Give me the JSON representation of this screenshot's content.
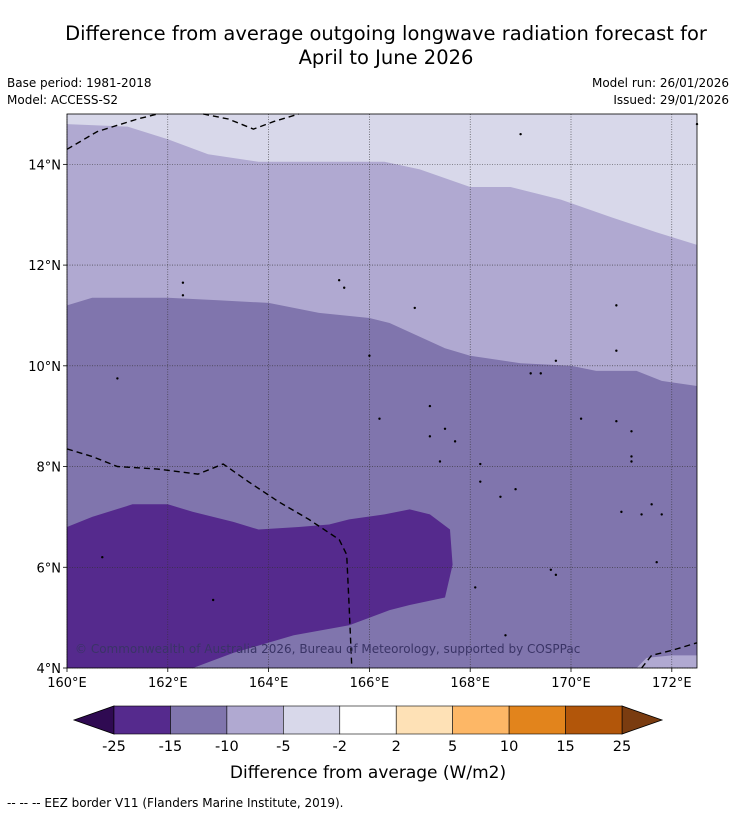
{
  "header": {
    "title_line1": "Difference from average outgoing longwave radiation forecast for",
    "title_line2": "April to June 2026",
    "base_period": "Base period: 1981-2018",
    "model": "Model: ACCESS-S2",
    "model_run": "Model run: 26/01/2026",
    "issued": "Issued: 29/01/2026"
  },
  "map": {
    "lon_range": [
      160,
      172.5
    ],
    "lat_range": [
      4,
      15
    ],
    "x_ticks": [
      {
        "value": 160,
        "label": "160°E"
      },
      {
        "value": 162,
        "label": "162°E"
      },
      {
        "value": 164,
        "label": "164°E"
      },
      {
        "value": 166,
        "label": "166°E"
      },
      {
        "value": 168,
        "label": "168°E"
      },
      {
        "value": 170,
        "label": "170°E"
      },
      {
        "value": 172,
        "label": "172°E"
      }
    ],
    "y_ticks": [
      {
        "value": 4,
        "label": "4°N"
      },
      {
        "value": 6,
        "label": "6°N"
      },
      {
        "value": 8,
        "label": "8°N"
      },
      {
        "value": 10,
        "label": "10°N"
      },
      {
        "value": 12,
        "label": "12°N"
      },
      {
        "value": 14,
        "label": "14°N"
      }
    ],
    "gridlines": true,
    "copyright": "© Commonwealth of Australia 2026, Bureau of Meteorology, supported by COSPPac",
    "regions": [
      {
        "name": "-5 to -2",
        "color": "#d8d8ea",
        "points": [
          [
            160,
            15
          ],
          [
            172.5,
            15
          ],
          [
            172.5,
            4
          ],
          [
            160,
            4
          ]
        ]
      },
      {
        "name": "-10 to -5",
        "color": "#b0a9d1",
        "points": [
          [
            160,
            14.8
          ],
          [
            161.2,
            14.75
          ],
          [
            162,
            14.5
          ],
          [
            162.8,
            14.2
          ],
          [
            163.8,
            14.05
          ],
          [
            165,
            14.05
          ],
          [
            166.3,
            14.05
          ],
          [
            167,
            13.9
          ],
          [
            168,
            13.55
          ],
          [
            168.8,
            13.55
          ],
          [
            169.8,
            13.3
          ],
          [
            170.8,
            12.95
          ],
          [
            171.7,
            12.65
          ],
          [
            172.5,
            12.4
          ],
          [
            172.5,
            4
          ],
          [
            160,
            4
          ]
        ]
      },
      {
        "name": "-15 to -10",
        "color": "#8075ad",
        "points": [
          [
            160,
            11.2
          ],
          [
            160.5,
            11.35
          ],
          [
            162,
            11.35
          ],
          [
            163,
            11.3
          ],
          [
            164,
            11.25
          ],
          [
            165,
            11.05
          ],
          [
            166,
            10.95
          ],
          [
            166.4,
            10.85
          ],
          [
            167.5,
            10.35
          ],
          [
            168,
            10.2
          ],
          [
            169,
            10.05
          ],
          [
            170,
            10
          ],
          [
            170.5,
            9.9
          ],
          [
            171.3,
            9.9
          ],
          [
            171.8,
            9.7
          ],
          [
            172.5,
            9.6
          ],
          [
            172.5,
            4
          ],
          [
            160,
            4
          ]
        ]
      },
      {
        "name": "-25 to -15",
        "color": "#552a8d",
        "points": [
          [
            160,
            6.8
          ],
          [
            160.5,
            7
          ],
          [
            161.3,
            7.25
          ],
          [
            162,
            7.25
          ],
          [
            162.5,
            7.1
          ],
          [
            163.3,
            6.9
          ],
          [
            163.8,
            6.75
          ],
          [
            164.6,
            6.8
          ],
          [
            165.2,
            6.85
          ],
          [
            165.6,
            6.95
          ],
          [
            166.3,
            7.05
          ],
          [
            166.8,
            7.15
          ],
          [
            167.2,
            7.05
          ],
          [
            167.6,
            6.75
          ],
          [
            167.65,
            6.05
          ],
          [
            167.5,
            5.4
          ],
          [
            166.8,
            5.25
          ],
          [
            166.4,
            5.15
          ],
          [
            165.6,
            4.85
          ],
          [
            164.5,
            4.65
          ],
          [
            163.3,
            4.3
          ],
          [
            162.5,
            4
          ],
          [
            160,
            4
          ]
        ]
      },
      {
        "name": "-10 to -5 corner",
        "color": "#b0a9d1",
        "points": [
          [
            171.3,
            4
          ],
          [
            172.5,
            4
          ],
          [
            172.5,
            4.25
          ],
          [
            172,
            4.25
          ],
          [
            171.5,
            4.2
          ]
        ]
      }
    ],
    "eez_borders": [
      [
        [
          160,
          14.3
        ],
        [
          160.6,
          14.65
        ],
        [
          161.4,
          14.9
        ],
        [
          161.8,
          15
        ]
      ],
      [
        [
          162.7,
          15
        ],
        [
          163.2,
          14.9
        ],
        [
          163.7,
          14.7
        ],
        [
          164.1,
          14.85
        ],
        [
          164.6,
          15
        ]
      ],
      [
        [
          160,
          8.35
        ],
        [
          160.5,
          8.2
        ],
        [
          161,
          8
        ],
        [
          161.8,
          7.95
        ],
        [
          162.6,
          7.85
        ],
        [
          163.1,
          8.05
        ],
        [
          163.6,
          7.7
        ],
        [
          164.2,
          7.3
        ],
        [
          164.8,
          6.95
        ],
        [
          165.4,
          6.55
        ],
        [
          165.55,
          6.25
        ],
        [
          165.6,
          5.2
        ],
        [
          165.65,
          4
        ]
      ],
      [
        [
          171.4,
          4
        ],
        [
          171.6,
          4.25
        ],
        [
          172,
          4.35
        ],
        [
          172.5,
          4.5
        ]
      ]
    ],
    "islands": [
      [
        162.3,
        11.65
      ],
      [
        162.3,
        11.4
      ],
      [
        165.4,
        11.7
      ],
      [
        165.5,
        11.55
      ],
      [
        166.9,
        11.15
      ],
      [
        169,
        14.6
      ],
      [
        172.5,
        14.8
      ],
      [
        170.9,
        11.2
      ],
      [
        161,
        9.75
      ],
      [
        166,
        10.2
      ],
      [
        170.9,
        10.3
      ],
      [
        169.7,
        10.1
      ],
      [
        169.2,
        9.85
      ],
      [
        169.4,
        9.85
      ],
      [
        170.2,
        8.95
      ],
      [
        167.2,
        9.2
      ],
      [
        167.5,
        8.75
      ],
      [
        167.2,
        8.6
      ],
      [
        166.2,
        8.95
      ],
      [
        167.7,
        8.5
      ],
      [
        170.9,
        8.9
      ],
      [
        171.2,
        8.7
      ],
      [
        171.2,
        8.2
      ],
      [
        171.2,
        8.1
      ],
      [
        167.4,
        8.1
      ],
      [
        168.2,
        8.05
      ],
      [
        168.2,
        7.7
      ],
      [
        168.9,
        7.55
      ],
      [
        168.6,
        7.4
      ],
      [
        171,
        7.1
      ],
      [
        171.4,
        7.05
      ],
      [
        171.8,
        7.05
      ],
      [
        171.6,
        7.25
      ],
      [
        160.7,
        6.2
      ],
      [
        162.9,
        5.35
      ],
      [
        168.1,
        5.6
      ],
      [
        169.6,
        5.95
      ],
      [
        169.7,
        5.85
      ],
      [
        171.7,
        6.1
      ],
      [
        168.7,
        4.65
      ]
    ]
  },
  "colorbar": {
    "label": "Difference from average (W/m2)",
    "under_color": "#2f0a52",
    "over_color": "#7a3c10",
    "bins": [
      {
        "color": "#552a8d",
        "low": "-25",
        "high": "-15"
      },
      {
        "color": "#8075ad",
        "low": "-15",
        "high": "-10"
      },
      {
        "color": "#b0a9d1",
        "low": "-10",
        "high": "-5"
      },
      {
        "color": "#d8d8ea",
        "low": "-5",
        "high": "-2"
      },
      {
        "color": "#ffffff",
        "low": "-2",
        "high": "2"
      },
      {
        "color": "#fee1b6",
        "low": "2",
        "high": "5"
      },
      {
        "color": "#fdb766",
        "low": "5",
        "high": "10"
      },
      {
        "color": "#e2841c",
        "low": "10",
        "high": "15"
      },
      {
        "color": "#b2560a",
        "low": "15",
        "high": "25"
      }
    ],
    "tick_labels": [
      "-25",
      "-15",
      "-10",
      "-5",
      "-2",
      "2",
      "5",
      "10",
      "15",
      "25"
    ]
  },
  "footer": {
    "eez_legend": "-- -- -- EEZ border V11 (Flanders Marine Institute, 2019)."
  }
}
